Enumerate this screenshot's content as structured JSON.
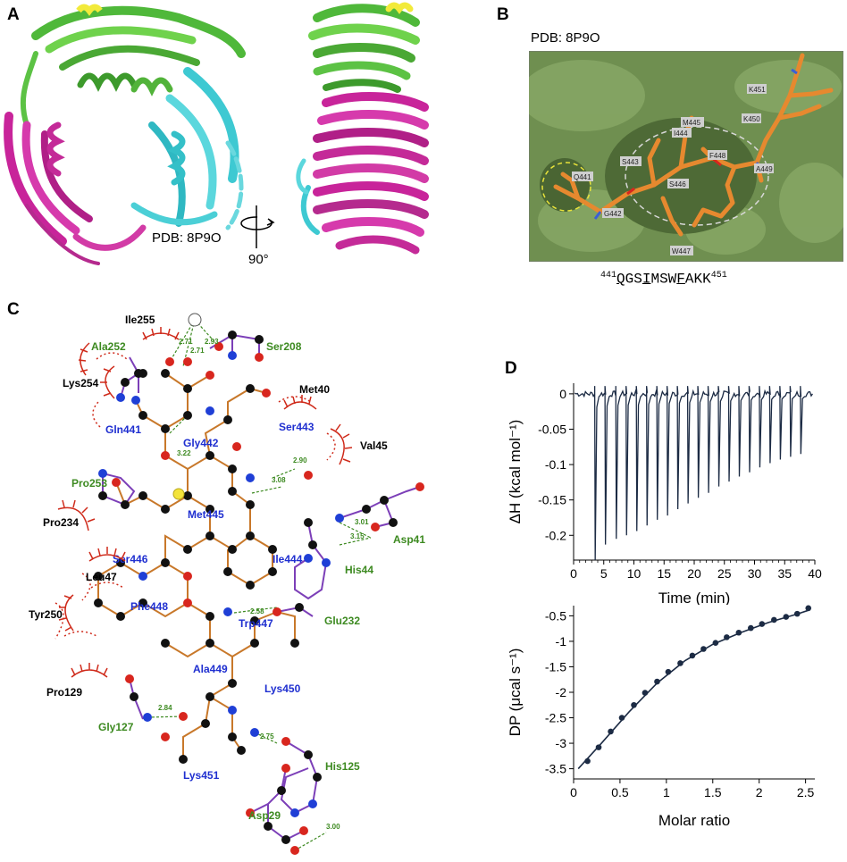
{
  "panels": {
    "a": {
      "letter": "A",
      "pdb_label": "PDB: 8P9O",
      "rotation_label": "90°",
      "colors": {
        "green": "#5fc63f",
        "cyan": "#3ec9d2",
        "magenta": "#c8249a",
        "yellow": "#f2ea3a"
      }
    },
    "b": {
      "letter": "B",
      "pdb_label": "PDB: 8P9O",
      "residue_labels": [
        "K451",
        "K450",
        "M445",
        "I444",
        "F448",
        "S443",
        "A449",
        "Q441",
        "S446",
        "G442",
        "W447"
      ],
      "sequence": {
        "start": "441",
        "residues": [
          "Q",
          "G",
          "S",
          "I",
          "M",
          "S",
          "W",
          "F",
          "A",
          "K",
          "K"
        ],
        "underlined": [
          0,
          3,
          7
        ],
        "end": "451"
      },
      "colors": {
        "surface": "#6f8f50",
        "stick": "#e6892f"
      }
    },
    "c": {
      "letter": "C",
      "peptide_residues": [
        "Gln441",
        "Gly442",
        "Ser443",
        "Met445",
        "Ser446",
        "Ile444",
        "Phe448",
        "Trp447",
        "Ala449",
        "Lys450",
        "Lys451"
      ],
      "hbond_partners": [
        "Ala252",
        "Ser208",
        "Pro253",
        "Asp41",
        "His44",
        "Glu232",
        "Gly127",
        "His125",
        "Asp29"
      ],
      "hydrophobic_contacts": [
        "Ile255",
        "Lys254",
        "Met40",
        "Val45",
        "Pro234",
        "Leu47",
        "Tyr250",
        "Pro129"
      ],
      "distances": [
        "2.71",
        "2.93",
        "2.71",
        "3.22",
        "2.90",
        "3.08",
        "3.01",
        "3.15",
        "2.58",
        "2.84",
        "2.75",
        "3.00"
      ],
      "colors": {
        "peptide_label": "#1f2fd0",
        "partner_label": "#3d8a21",
        "contact": "#cf2a1a",
        "bond_peptide": "#c8782a",
        "bond_partner": "#7c3fb8",
        "carbon": "#111111",
        "oxygen": "#d8261e",
        "nitrogen": "#1f3fd6",
        "sulfur": "#f3e33a"
      }
    },
    "d": {
      "letter": "D"
    }
  },
  "chart_data": [
    {
      "type": "line",
      "xlabel": "Time (min)",
      "ylabel": "ΔH (kcal mol⁻¹)",
      "xlim": [
        0,
        40
      ],
      "ylim": [
        -0.235,
        0.015
      ],
      "xticks": [
        0,
        5,
        10,
        15,
        20,
        25,
        30,
        35,
        40
      ],
      "yticks": [
        0,
        -0.05,
        -0.1,
        -0.15,
        -0.2
      ],
      "ytick_labels": [
        "0",
        "-0.05",
        "-0.1",
        "-0.15",
        "-0.2"
      ],
      "injection_times": [
        3.5,
        5.2,
        7.0,
        8.7,
        10.4,
        12.1,
        13.8,
        15.5,
        17.2,
        18.9,
        20.6,
        22.3,
        24.0,
        25.7,
        27.4,
        29.1,
        30.8,
        32.5,
        34.2,
        35.9,
        37.6
      ],
      "injection_peaks": [
        -0.235,
        -0.213,
        -0.205,
        -0.2,
        -0.194,
        -0.186,
        -0.178,
        -0.172,
        -0.163,
        -0.155,
        -0.147,
        -0.14,
        -0.131,
        -0.124,
        -0.117,
        -0.111,
        -0.104,
        -0.098,
        -0.093,
        -0.089,
        -0.085
      ],
      "color": "#1c2b44"
    },
    {
      "type": "scatter",
      "xlabel": "Molar ratio",
      "ylabel": "DP (μcal s⁻¹)",
      "xlim": [
        0,
        2.6
      ],
      "ylim": [
        -3.7,
        -0.3
      ],
      "xticks": [
        0,
        0.5,
        1,
        1.5,
        2,
        2.5
      ],
      "xtick_labels": [
        "0",
        "0.5",
        "1",
        "1.5",
        "2",
        "2.5"
      ],
      "yticks": [
        -0.5,
        -1,
        -1.5,
        -2,
        -2.5,
        -3,
        -3.5
      ],
      "ytick_labels": [
        "-0.5",
        "-1",
        "-1.5",
        "-2",
        "-2.5",
        "-3",
        "-3.5"
      ],
      "x": [
        0.15,
        0.27,
        0.4,
        0.52,
        0.65,
        0.77,
        0.9,
        1.02,
        1.15,
        1.28,
        1.4,
        1.53,
        1.65,
        1.78,
        1.91,
        2.03,
        2.16,
        2.29,
        2.41,
        2.53
      ],
      "y": [
        -3.35,
        -3.08,
        -2.77,
        -2.5,
        -2.25,
        -2.01,
        -1.79,
        -1.6,
        -1.43,
        -1.28,
        -1.15,
        -1.03,
        -0.92,
        -0.83,
        -0.74,
        -0.66,
        -0.58,
        -0.52,
        -0.46,
        -0.35
      ],
      "fit_x": [
        0.05,
        0.3,
        0.6,
        0.9,
        1.2,
        1.5,
        1.8,
        2.1,
        2.4,
        2.55
      ],
      "fit_y": [
        -3.5,
        -3.0,
        -2.38,
        -1.82,
        -1.38,
        -1.06,
        -0.83,
        -0.63,
        -0.47,
        -0.38
      ],
      "color": "#1c2b44"
    }
  ]
}
